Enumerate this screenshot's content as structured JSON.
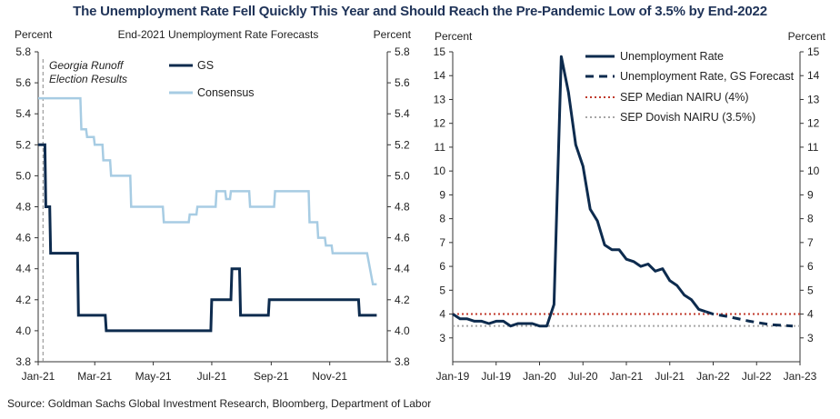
{
  "title": "The Unemployment Rate Fell Quickly This Year and Should Reach the Pre-Pandemic Low of 3.5% by End-2022",
  "source": "Source: Goldman Sachs Global Investment Research, Bloomberg, Department of Labor",
  "chart_data": [
    {
      "type": "line",
      "title": "End-2021  Unemployment  Rate  Forecasts",
      "ylabel_left": "Percent",
      "ylabel_right": "Percent",
      "x_ticks": [
        "Jan-21",
        "Mar-21",
        "May-21",
        "Jul-21",
        "Sep-21",
        "Nov-21"
      ],
      "xlim": [
        "2021-01-01",
        "2021-12-31"
      ],
      "ylim": [
        3.8,
        5.8
      ],
      "y_ticks": [
        3.8,
        4.0,
        4.2,
        4.4,
        4.6,
        4.8,
        5.0,
        5.2,
        5.4,
        5.6,
        5.8
      ],
      "annotation": {
        "text": [
          "Georgia Runoff",
          "Election Results"
        ],
        "date": "2021-01-06",
        "style": "dashed vertical line"
      },
      "legend_position": "top-right",
      "series": [
        {
          "name": "GS",
          "color": "#0d2b4e",
          "step": true,
          "points": [
            [
              "2021-01-01",
              5.2
            ],
            [
              "2021-01-08",
              5.2
            ],
            [
              "2021-01-09",
              4.8
            ],
            [
              "2021-01-13",
              4.8
            ],
            [
              "2021-01-14",
              4.5
            ],
            [
              "2021-02-11",
              4.5
            ],
            [
              "2021-02-12",
              4.1
            ],
            [
              "2021-03-12",
              4.1
            ],
            [
              "2021-03-13",
              4.0
            ],
            [
              "2021-06-30",
              4.0
            ],
            [
              "2021-07-01",
              4.2
            ],
            [
              "2021-07-21",
              4.2
            ],
            [
              "2021-07-22",
              4.4
            ],
            [
              "2021-07-30",
              4.4
            ],
            [
              "2021-07-31",
              4.1
            ],
            [
              "2021-08-29",
              4.1
            ],
            [
              "2021-08-30",
              4.2
            ],
            [
              "2021-12-01",
              4.2
            ],
            [
              "2021-12-02",
              4.1
            ],
            [
              "2021-12-20",
              4.1
            ]
          ]
        },
        {
          "name": "Consensus",
          "color": "#a7cce3",
          "step": true,
          "points": [
            [
              "2021-01-01",
              5.5
            ],
            [
              "2021-02-14",
              5.5
            ],
            [
              "2021-02-15",
              5.3
            ],
            [
              "2021-02-20",
              5.3
            ],
            [
              "2021-02-21",
              5.25
            ],
            [
              "2021-02-28",
              5.25
            ],
            [
              "2021-03-01",
              5.2
            ],
            [
              "2021-03-09",
              5.2
            ],
            [
              "2021-03-10",
              5.1
            ],
            [
              "2021-03-17",
              5.1
            ],
            [
              "2021-03-18",
              5.0
            ],
            [
              "2021-04-07",
              5.0
            ],
            [
              "2021-04-08",
              4.8
            ],
            [
              "2021-05-11",
              4.8
            ],
            [
              "2021-05-12",
              4.7
            ],
            [
              "2021-06-07",
              4.7
            ],
            [
              "2021-06-08",
              4.75
            ],
            [
              "2021-06-15",
              4.75
            ],
            [
              "2021-06-16",
              4.8
            ],
            [
              "2021-07-05",
              4.8
            ],
            [
              "2021-07-06",
              4.9
            ],
            [
              "2021-07-15",
              4.9
            ],
            [
              "2021-07-16",
              4.85
            ],
            [
              "2021-07-20",
              4.85
            ],
            [
              "2021-07-21",
              4.9
            ],
            [
              "2021-08-09",
              4.9
            ],
            [
              "2021-08-10",
              4.8
            ],
            [
              "2021-09-04",
              4.8
            ],
            [
              "2021-09-05",
              4.9
            ],
            [
              "2021-10-10",
              4.9
            ],
            [
              "2021-10-11",
              4.7
            ],
            [
              "2021-10-19",
              4.7
            ],
            [
              "2021-10-20",
              4.6
            ],
            [
              "2021-10-27",
              4.6
            ],
            [
              "2021-10-28",
              4.55
            ],
            [
              "2021-11-03",
              4.55
            ],
            [
              "2021-11-04",
              4.5
            ],
            [
              "2021-12-10",
              4.5
            ],
            [
              "2021-12-16",
              4.3
            ],
            [
              "2021-12-20",
              4.3
            ]
          ]
        }
      ]
    },
    {
      "type": "line",
      "ylabel_left": "Percent",
      "ylabel_right": "Percent",
      "x_ticks": [
        "Jan-19",
        "Jul-19",
        "Jan-20",
        "Jul-20",
        "Jan-21",
        "Jul-21",
        "Jan-22",
        "Jul-22",
        "Jan-23"
      ],
      "xlim": [
        "2019-01",
        "2023-01"
      ],
      "ylim": [
        2,
        15
      ],
      "y_ticks": [
        3,
        4,
        5,
        6,
        7,
        8,
        9,
        10,
        11,
        12,
        13,
        14,
        15
      ],
      "legend_position": "top-right",
      "series": [
        {
          "name": "Unemployment Rate",
          "color": "#0d2b4e",
          "style": "solid",
          "points": [
            [
              "2019-01",
              4.0
            ],
            [
              "2019-02",
              3.8
            ],
            [
              "2019-03",
              3.8
            ],
            [
              "2019-04",
              3.7
            ],
            [
              "2019-05",
              3.7
            ],
            [
              "2019-06",
              3.6
            ],
            [
              "2019-07",
              3.7
            ],
            [
              "2019-08",
              3.7
            ],
            [
              "2019-09",
              3.5
            ],
            [
              "2019-10",
              3.6
            ],
            [
              "2019-11",
              3.6
            ],
            [
              "2019-12",
              3.6
            ],
            [
              "2020-01",
              3.5
            ],
            [
              "2020-02",
              3.5
            ],
            [
              "2020-03",
              4.4
            ],
            [
              "2020-04",
              14.8
            ],
            [
              "2020-05",
              13.3
            ],
            [
              "2020-06",
              11.1
            ],
            [
              "2020-07",
              10.2
            ],
            [
              "2020-08",
              8.4
            ],
            [
              "2020-09",
              7.9
            ],
            [
              "2020-10",
              6.9
            ],
            [
              "2020-11",
              6.7
            ],
            [
              "2020-12",
              6.7
            ],
            [
              "2021-01",
              6.3
            ],
            [
              "2021-02",
              6.2
            ],
            [
              "2021-03",
              6.0
            ],
            [
              "2021-04",
              6.1
            ],
            [
              "2021-05",
              5.8
            ],
            [
              "2021-06",
              5.9
            ],
            [
              "2021-07",
              5.4
            ],
            [
              "2021-08",
              5.2
            ],
            [
              "2021-09",
              4.8
            ],
            [
              "2021-10",
              4.6
            ],
            [
              "2021-11",
              4.2
            ],
            [
              "2021-12",
              4.1
            ]
          ]
        },
        {
          "name": "Unemployment Rate, GS Forecast",
          "color": "#0d2b4e",
          "style": "dashed",
          "points": [
            [
              "2021-12",
              4.1
            ],
            [
              "2022-01",
              4.0
            ],
            [
              "2022-03",
              3.9
            ],
            [
              "2022-06",
              3.7
            ],
            [
              "2022-09",
              3.55
            ],
            [
              "2022-12",
              3.5
            ]
          ]
        },
        {
          "name": "SEP Median NAIRU (4%)",
          "color": "#c0392b",
          "style": "dotted",
          "value": 4.0
        },
        {
          "name": "SEP Dovish NAIRU (3.5%)",
          "color": "#a6a6a6",
          "style": "dotted",
          "value": 3.5
        }
      ]
    }
  ]
}
